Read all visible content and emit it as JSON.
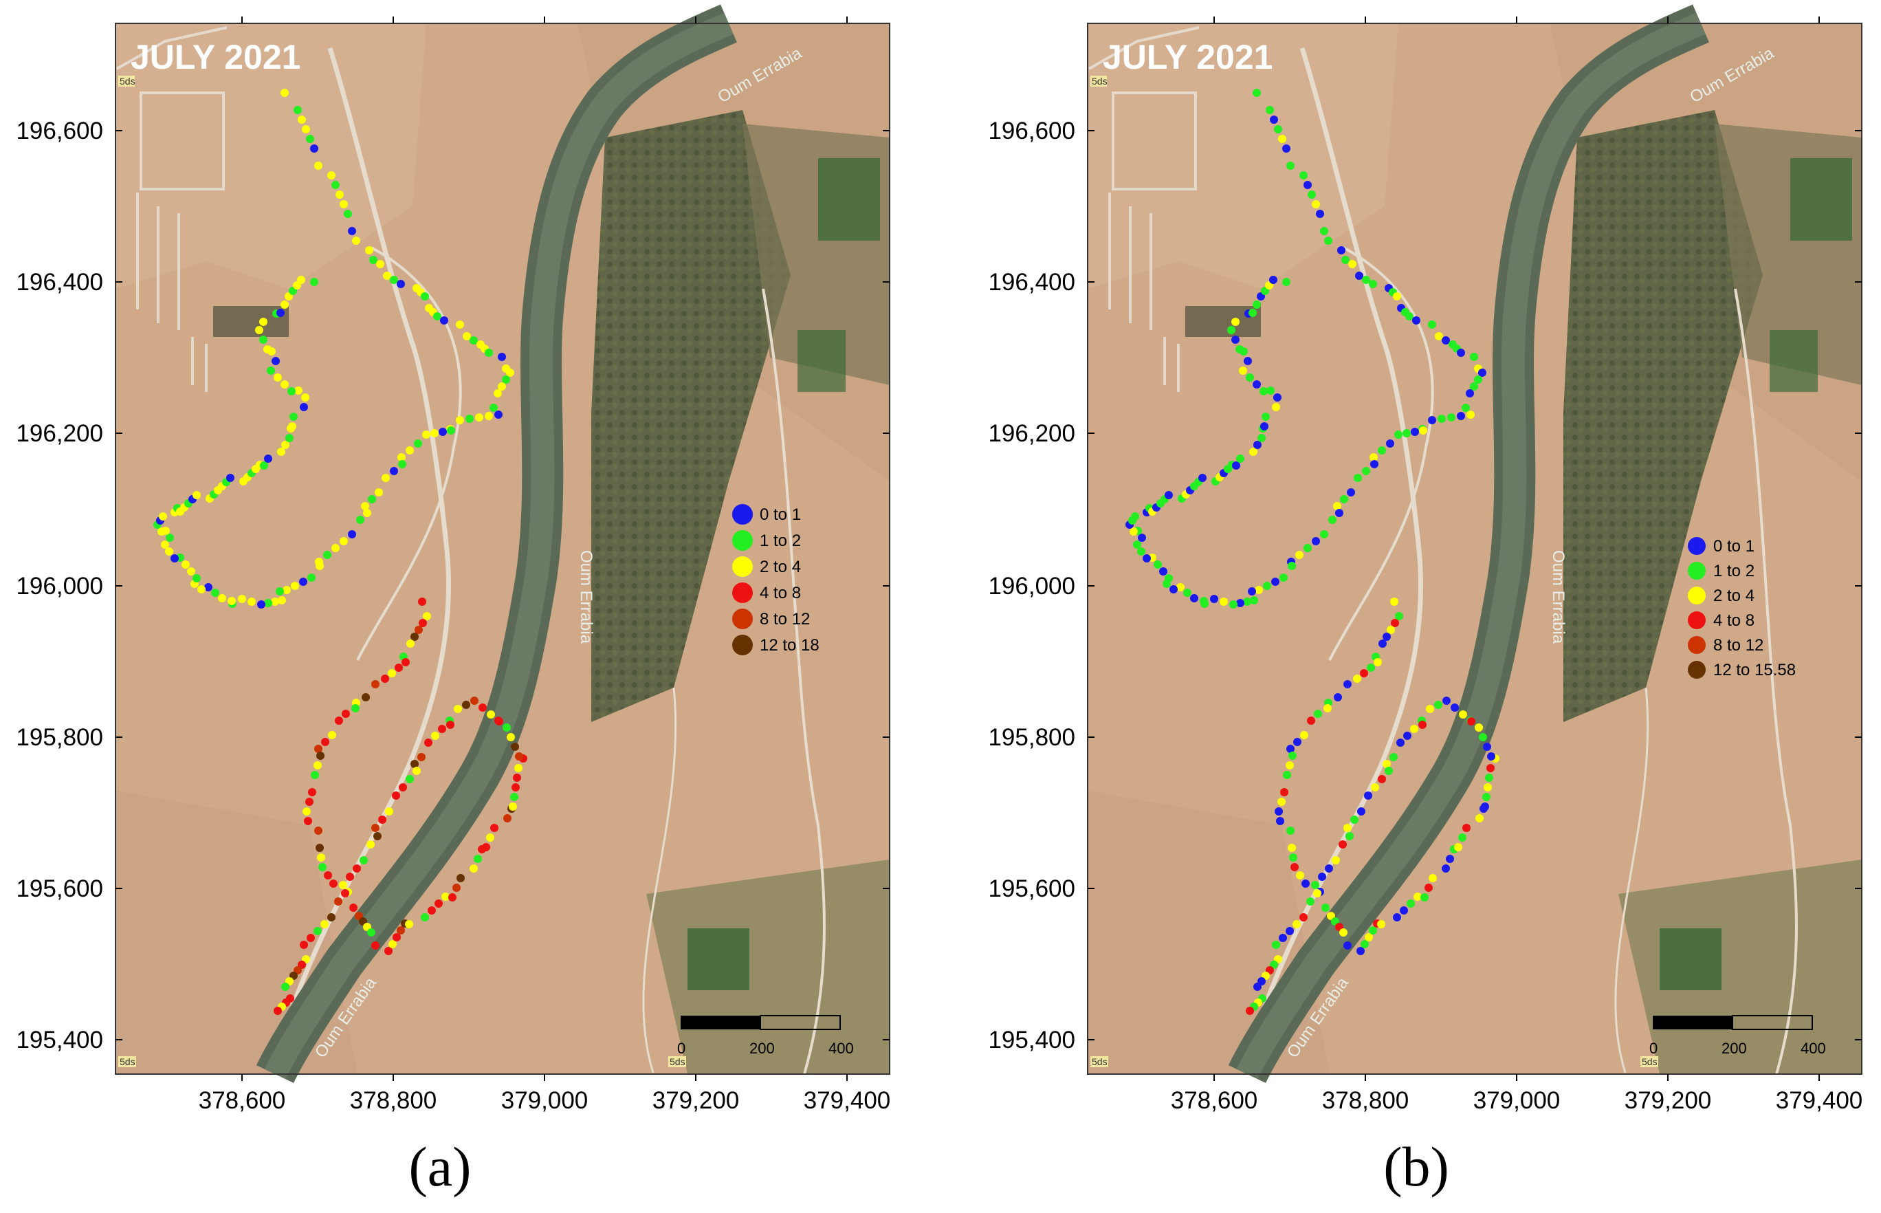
{
  "panels": [
    {
      "id": "a",
      "caption_letter": "a",
      "caption_text": "(a)",
      "map_title": "JULY 2021",
      "y_ticks": [
        "196,600",
        "196,400",
        "196,200",
        "196,000",
        "195,800",
        "195,600",
        "195,400"
      ],
      "x_ticks": [
        "378,600",
        "378,800",
        "379,000",
        "379,200",
        "379,400"
      ],
      "legend": [
        {
          "label": "0  to  1",
          "color": "#1a1aee"
        },
        {
          "label": "1  to  2",
          "color": "#22ee22"
        },
        {
          "label": "2  to  4",
          "color": "#ffff00"
        },
        {
          "label": "4  to  8",
          "color": "#ee1111"
        },
        {
          "label": "8  to  12",
          "color": "#cc3300"
        },
        {
          "label": "12  to  18",
          "color": "#663300"
        }
      ],
      "scale_bar": {
        "labels": [
          "0",
          "200",
          "400"
        ]
      },
      "river_labels": [
        "Oum Errabia",
        "Oum Errabia",
        "Oum Errabia"
      ],
      "road_tags": [
        "5ds",
        "5ds",
        "5ds"
      ]
    },
    {
      "id": "b",
      "caption_letter": "b",
      "caption_text": "(b)",
      "map_title": "JULY 2021",
      "y_ticks": [
        "196,600",
        "196,400",
        "196,200",
        "196,000",
        "195,800",
        "195,600",
        "195,400"
      ],
      "x_ticks": [
        "378,600",
        "378,800",
        "379,000",
        "379,200",
        "379,400"
      ],
      "legend": [
        {
          "label": "0  to  1",
          "color": "#1a1aee"
        },
        {
          "label": "1  to  2",
          "color": "#22ee22"
        },
        {
          "label": "2  to  4",
          "color": "#ffff00"
        },
        {
          "label": "4  to  8",
          "color": "#ee1111"
        },
        {
          "label": "8  to  12",
          "color": "#cc3300"
        },
        {
          "label": "12  to  15.58",
          "color": "#663300"
        }
      ],
      "scale_bar": {
        "labels": [
          "0",
          "200",
          "400"
        ]
      },
      "river_labels": [
        "Oum Errabia",
        "Oum Errabia",
        "Oum Errabia"
      ],
      "road_tags": [
        "5ds",
        "5ds",
        "5ds"
      ]
    }
  ]
}
